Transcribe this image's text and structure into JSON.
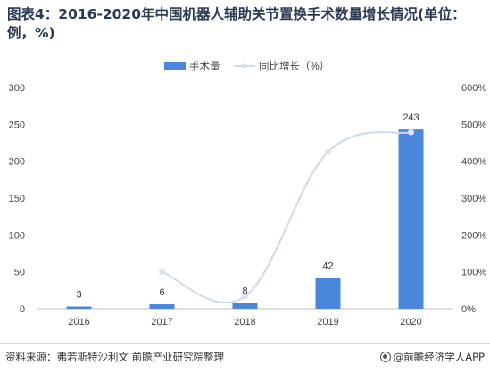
{
  "header": {
    "title": "图表4：2016-2020年中国机器人辅助关节置换手术数量增长情况(单位：例，%)"
  },
  "footer": {
    "source": "资料来源：弗若斯特沙利文 前瞻产业研究院整理",
    "brand": "@前瞻经济学人APP"
  },
  "colors": {
    "bar": "#4a86d9",
    "line": "#cdd9ea",
    "marker": "#d9e3f0"
  },
  "chart_data": {
    "type": "bar",
    "categories": [
      "2016",
      "2017",
      "2018",
      "2019",
      "2020"
    ],
    "series": [
      {
        "name": "手术量",
        "type": "bar",
        "axis": "left",
        "values": [
          3,
          6,
          8,
          42,
          243
        ]
      },
      {
        "name": "同比增长（%）",
        "type": "line",
        "axis": "right",
        "values": [
          null,
          100,
          33.3,
          425,
          478.6
        ]
      }
    ],
    "data_labels": [
      "3",
      "6",
      "8",
      "42",
      "243"
    ],
    "y_left": {
      "min": 0,
      "max": 300,
      "ticks": [
        "0",
        "50",
        "100",
        "150",
        "200",
        "250",
        "300"
      ]
    },
    "y_right": {
      "min": 0,
      "max": 600,
      "ticks": [
        "0%",
        "100%",
        "200%",
        "300%",
        "400%",
        "500%",
        "600%"
      ]
    },
    "legend_position": "top",
    "grid": false
  }
}
